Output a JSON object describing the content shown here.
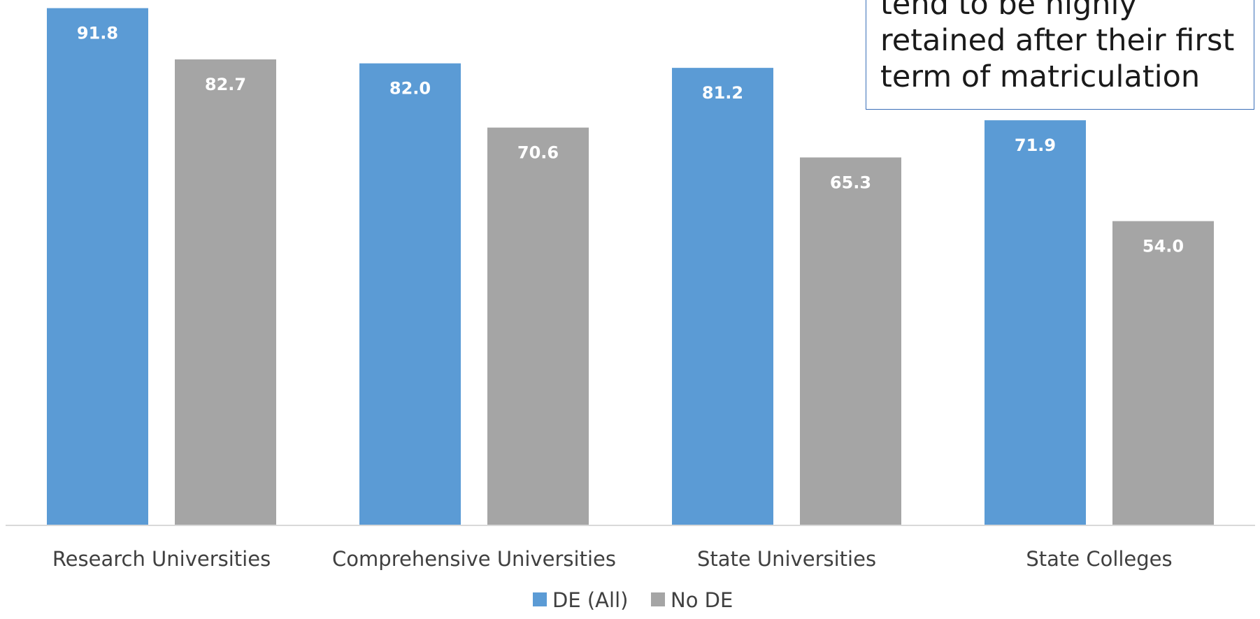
{
  "chart_data": {
    "type": "bar",
    "categories": [
      "Research Universities",
      "Comprehensive Universities",
      "State Universities",
      "State Colleges"
    ],
    "series": [
      {
        "name": "DE (All)",
        "values": [
          91.8,
          82.0,
          81.2,
          71.9
        ],
        "color": "#5b9bd5"
      },
      {
        "name": "No DE",
        "values": [
          82.7,
          70.6,
          65.3,
          54.0
        ],
        "color": "#a5a5a5"
      }
    ],
    "value_format": "one decimal, shown in white bold inside bar top",
    "legend_position": "bottom",
    "grid": false,
    "ylim": [
      0,
      92.5
    ]
  },
  "annotation": {
    "text": "tend to be highly retained after their first term of matriculation",
    "border_color": "#3a6fb8"
  }
}
